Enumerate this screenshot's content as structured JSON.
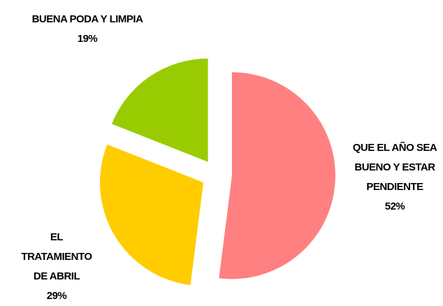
{
  "chart_data": {
    "type": "pie",
    "categories": [
      "QUE EL AÑO SEA BUENO Y ESTAR PENDIENTE",
      "EL TRATAMIENTO DE ABRIL",
      "BUENA PODA Y LIMPIA"
    ],
    "values": [
      52,
      29,
      19
    ],
    "value_labels": [
      "52%",
      "29%",
      "19%"
    ],
    "colors": [
      "#ff8080",
      "#ffcc00",
      "#99cc00"
    ],
    "exploded": true
  }
}
